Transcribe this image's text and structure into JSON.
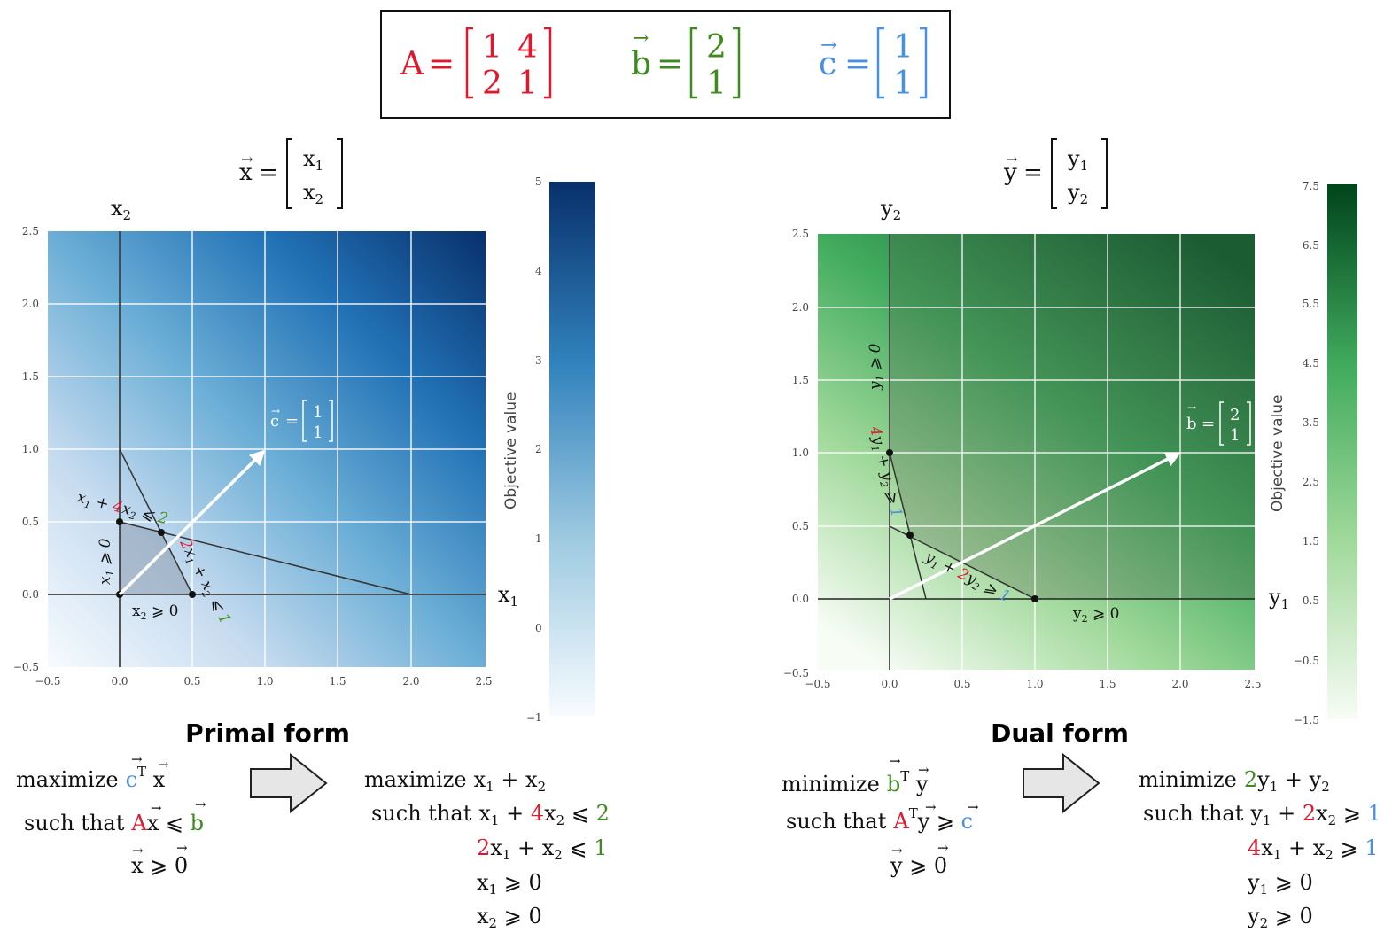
{
  "colors": {
    "red": "#e0182d",
    "green": "#3f8a1f",
    "blue": "#4a90e2",
    "ink": "#111111",
    "primal_dark": "#08306b",
    "dual_dark": "#00441b"
  },
  "matrices": {
    "A": {
      "name": "A",
      "eq": "=",
      "rows": [
        [
          "1",
          "4"
        ],
        [
          "2",
          "1"
        ]
      ]
    },
    "b": {
      "name": "b",
      "eq": "=",
      "rows": [
        [
          "2"
        ],
        [
          "1"
        ]
      ]
    },
    "c": {
      "name": "c",
      "eq": "=",
      "rows": [
        [
          "1"
        ],
        [
          "1"
        ]
      ]
    }
  },
  "primal": {
    "vector_def": {
      "lhs": "x",
      "eq": "=",
      "rows": [
        "x",
        "x"
      ],
      "subs": [
        "1",
        "2"
      ]
    },
    "x_axis_label": "x",
    "x_axis_sub": "1",
    "y_axis_label": "x",
    "y_axis_sub": "2",
    "colorbar_title": "Objective value",
    "colorbar_ticks": [
      "5",
      "4",
      "3",
      "2",
      "1",
      "0",
      "−1"
    ],
    "arrow_label": {
      "name": "c",
      "eq": "=",
      "rows": [
        "1",
        "1"
      ]
    },
    "constraints": {
      "c1": {
        "a": "x",
        "a_sub": "1",
        "plus": " + ",
        "coef": "4",
        "b": "x",
        "b_sub": "2",
        "rel": " ⩽ ",
        "rhs": "2"
      },
      "c2": {
        "coef": "2",
        "a": "x",
        "a_sub": "1",
        "plus": " + ",
        "b": "x",
        "b_sub": "2",
        "rel": " ⩽ ",
        "rhs": "1"
      },
      "c3": {
        "a": "x",
        "a_sub": "1",
        "rel": " ⩾ 0"
      },
      "c4": {
        "a": "x",
        "a_sub": "2",
        "rel": " ⩾ 0"
      }
    },
    "form_title": "Primal form",
    "compact": {
      "line1": "maximize",
      "line2": "such that"
    },
    "expanded": {
      "maximize": "maximize",
      "such_that": "such that"
    }
  },
  "dual": {
    "vector_def": {
      "lhs": "y",
      "eq": "=",
      "rows": [
        "y",
        "y"
      ],
      "subs": [
        "1",
        "2"
      ]
    },
    "x_axis_label": "y",
    "x_axis_sub": "1",
    "y_axis_label": "y",
    "y_axis_sub": "2",
    "colorbar_title": "Objective value",
    "colorbar_ticks": [
      "7.5",
      "6.5",
      "5.5",
      "4.5",
      "3.5",
      "2.5",
      "1.5",
      "0.5",
      "−0.5",
      "−1.5"
    ],
    "arrow_label": {
      "name": "b",
      "eq": "=",
      "rows": [
        "2",
        "1"
      ]
    },
    "constraints": {
      "c1": {
        "a": "y",
        "a_sub": "1",
        "plus": " + ",
        "coef": "2",
        "b": "y",
        "b_sub": "2",
        "rel": " ⩾ ",
        "rhs": "1"
      },
      "c2": {
        "coef": "4",
        "a": "y",
        "a_sub": "1",
        "plus": " + ",
        "b": "y",
        "b_sub": "2",
        "rel": " ⩾ ",
        "rhs": "1"
      },
      "c3": {
        "a": "y",
        "a_sub": "1",
        "rel": " ⩾ 0"
      },
      "c4": {
        "a": "y",
        "a_sub": "2",
        "rel": " ⩾ 0"
      }
    },
    "form_title": "Dual form",
    "compact": {
      "line1": "minimize",
      "line2": "such that"
    },
    "expanded": {
      "minimize": "minimize",
      "such_that": "such that"
    }
  },
  "tick_labels": [
    "−0.5",
    "0.0",
    "0.5",
    "1.0",
    "1.5",
    "2.0",
    "2.5"
  ]
}
